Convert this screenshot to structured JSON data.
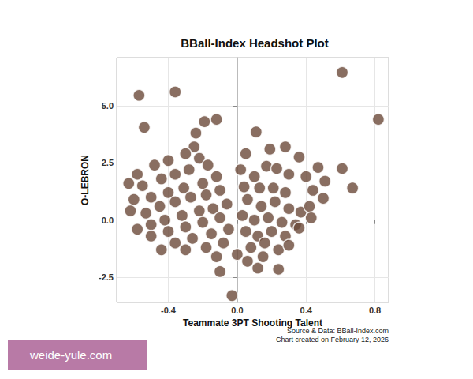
{
  "chart_data": {
    "type": "scatter",
    "title": "BBall-Index Headshot Plot",
    "xlabel": "Teammate 3PT Shooting Talent",
    "ylabel": "O-LEBRON",
    "annotations": [
      "Source & Data: BBall-Index.com",
      "Chart created on February 12, 2026",
      "weide-yule.com"
    ],
    "x": [
      -0.57,
      -0.36,
      0.61,
      0.82,
      -0.54,
      -0.24,
      -0.19,
      -0.12,
      -0.25,
      0.11,
      -0.3,
      -0.22,
      -0.4,
      -0.48,
      -0.58,
      -0.63,
      -0.55,
      -0.44,
      -0.36,
      -0.28,
      -0.17,
      -0.12,
      -0.2,
      -0.31,
      -0.4,
      -0.5,
      -0.6,
      -0.62,
      -0.53,
      -0.45,
      -0.36,
      -0.27,
      -0.18,
      -0.1,
      -0.06,
      -0.14,
      -0.22,
      -0.32,
      -0.42,
      -0.5,
      -0.58,
      -0.5,
      -0.4,
      -0.3,
      -0.2,
      -0.1,
      -0.05,
      -0.15,
      -0.26,
      -0.36,
      -0.44,
      -0.3,
      -0.18,
      -0.08,
      -0.1,
      -0.03,
      -0.12,
      0.0,
      0.02,
      0.05,
      0.04,
      0.1,
      0.13,
      0.17,
      0.19,
      0.21,
      0.23,
      0.28,
      0.28,
      0.3,
      0.36,
      0.06,
      0.14,
      0.22,
      0.3,
      0.37,
      0.03,
      0.1,
      0.18,
      0.26,
      0.34,
      0.36,
      0.05,
      0.12,
      0.2,
      0.28,
      0.08,
      0.16,
      0.24,
      0.3,
      0.06,
      0.15,
      0.24,
      0.12,
      0.61,
      0.67,
      0.51,
      0.5,
      0.44,
      0.42,
      0.47,
      0.4,
      0.43
    ],
    "values": [
      5.45,
      5.6,
      6.45,
      4.4,
      4.05,
      3.8,
      4.3,
      4.4,
      3.2,
      3.85,
      2.9,
      2.7,
      2.6,
      2.4,
      2.0,
      1.6,
      1.5,
      1.8,
      2.0,
      2.2,
      2.4,
      1.9,
      1.6,
      1.4,
      1.2,
      1.0,
      0.9,
      0.4,
      0.3,
      0.6,
      0.8,
      1.0,
      1.1,
      1.3,
      0.7,
      0.5,
      0.4,
      0.2,
      0.0,
      -0.2,
      -0.4,
      -0.7,
      -0.5,
      -0.3,
      -0.1,
      0.1,
      -0.4,
      -0.6,
      -0.8,
      -1.0,
      -1.3,
      -1.3,
      -1.2,
      -1.0,
      -2.25,
      -3.3,
      -1.6,
      -1.5,
      2.2,
      2.9,
      1.45,
      1.9,
      1.4,
      2.35,
      3.1,
      1.4,
      2.25,
      3.2,
      1.2,
      2.0,
      2.75,
      0.9,
      0.6,
      0.8,
      0.5,
      0.35,
      0.2,
      0.0,
      0.1,
      -0.1,
      -0.2,
      -0.35,
      -0.5,
      -0.7,
      -0.5,
      -0.7,
      -1.2,
      -1.0,
      -1.3,
      -1.1,
      -1.8,
      -1.6,
      -2.15,
      -2.1,
      2.25,
      1.4,
      1.7,
      0.95,
      1.3,
      0.6,
      2.3,
      1.9,
      0.1
    ],
    "color": "#6b4a3a",
    "marker": "circle",
    "xlim": [
      -0.7,
      0.88
    ],
    "xticks": [
      {
        "value": -0.4,
        "label": "-0.4"
      },
      {
        "value": 0,
        "label": "0.0"
      },
      {
        "value": 0.4,
        "label": "0.4"
      },
      {
        "value": 0.8,
        "label": "0.8"
      }
    ],
    "ylim": [
      -3.6,
      7.1
    ],
    "yticks": [
      {
        "value": -2.5,
        "label": "-2.5"
      },
      {
        "value": 0,
        "label": "0.0"
      },
      {
        "value": 2.5,
        "label": "2.5"
      },
      {
        "value": 5,
        "label": "5.0"
      }
    ],
    "grid": true
  }
}
